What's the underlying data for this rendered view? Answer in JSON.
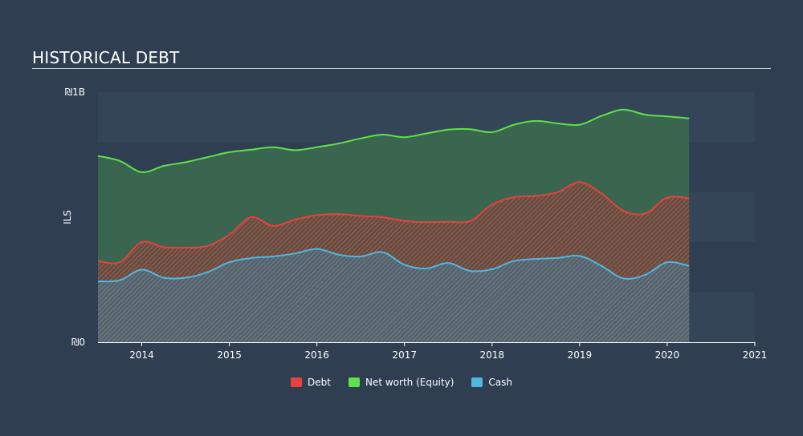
{
  "title": "HISTORICAL DEBT",
  "chart_data": {
    "type": "area",
    "title": "HISTORICAL DEBT",
    "ylabel": "ILS",
    "xlabel": "",
    "ylim": [
      0,
      1000
    ],
    "xlim": [
      2013.5,
      2021
    ],
    "y_unit": "million ILS",
    "y_ticks": [
      {
        "value": 0,
        "label": "₪0"
      },
      {
        "value": 1000,
        "label": "₪1B"
      }
    ],
    "x_ticks": [
      {
        "value": 2014,
        "label": "2014"
      },
      {
        "value": 2015,
        "label": "2015"
      },
      {
        "value": 2016,
        "label": "2016"
      },
      {
        "value": 2017,
        "label": "2017"
      },
      {
        "value": 2018,
        "label": "2018"
      },
      {
        "value": 2019,
        "label": "2019"
      },
      {
        "value": 2020,
        "label": "2020"
      },
      {
        "value": 2021,
        "label": "2021"
      }
    ],
    "x": [
      2013.5,
      2013.75,
      2014.0,
      2014.25,
      2014.5,
      2014.75,
      2015.0,
      2015.25,
      2015.5,
      2015.75,
      2016.0,
      2016.25,
      2016.5,
      2016.75,
      2017.0,
      2017.25,
      2017.5,
      2017.75,
      2018.0,
      2018.25,
      2018.5,
      2018.75,
      2019.0,
      2019.25,
      2019.5,
      2019.75,
      2020.0,
      2020.25
    ],
    "series": [
      {
        "name": "Debt",
        "color": "#e8413c",
        "values": [
          325,
          320,
          400,
          380,
          378,
          385,
          430,
          500,
          465,
          490,
          508,
          512,
          505,
          500,
          485,
          480,
          482,
          485,
          550,
          580,
          585,
          600,
          640,
          595,
          525,
          515,
          578,
          575
        ]
      },
      {
        "name": "Net worth (Equity)",
        "color": "#5ee14a",
        "values": [
          745,
          725,
          680,
          705,
          720,
          740,
          760,
          770,
          780,
          768,
          780,
          795,
          815,
          830,
          820,
          835,
          850,
          852,
          840,
          870,
          885,
          875,
          870,
          905,
          930,
          910,
          903,
          895
        ]
      },
      {
        "name": "Cash",
        "color": "#4fb8e0",
        "values": [
          243,
          248,
          290,
          258,
          258,
          280,
          320,
          337,
          343,
          355,
          373,
          350,
          343,
          360,
          310,
          295,
          317,
          285,
          292,
          325,
          333,
          337,
          345,
          305,
          255,
          270,
          320,
          305
        ]
      }
    ]
  }
}
